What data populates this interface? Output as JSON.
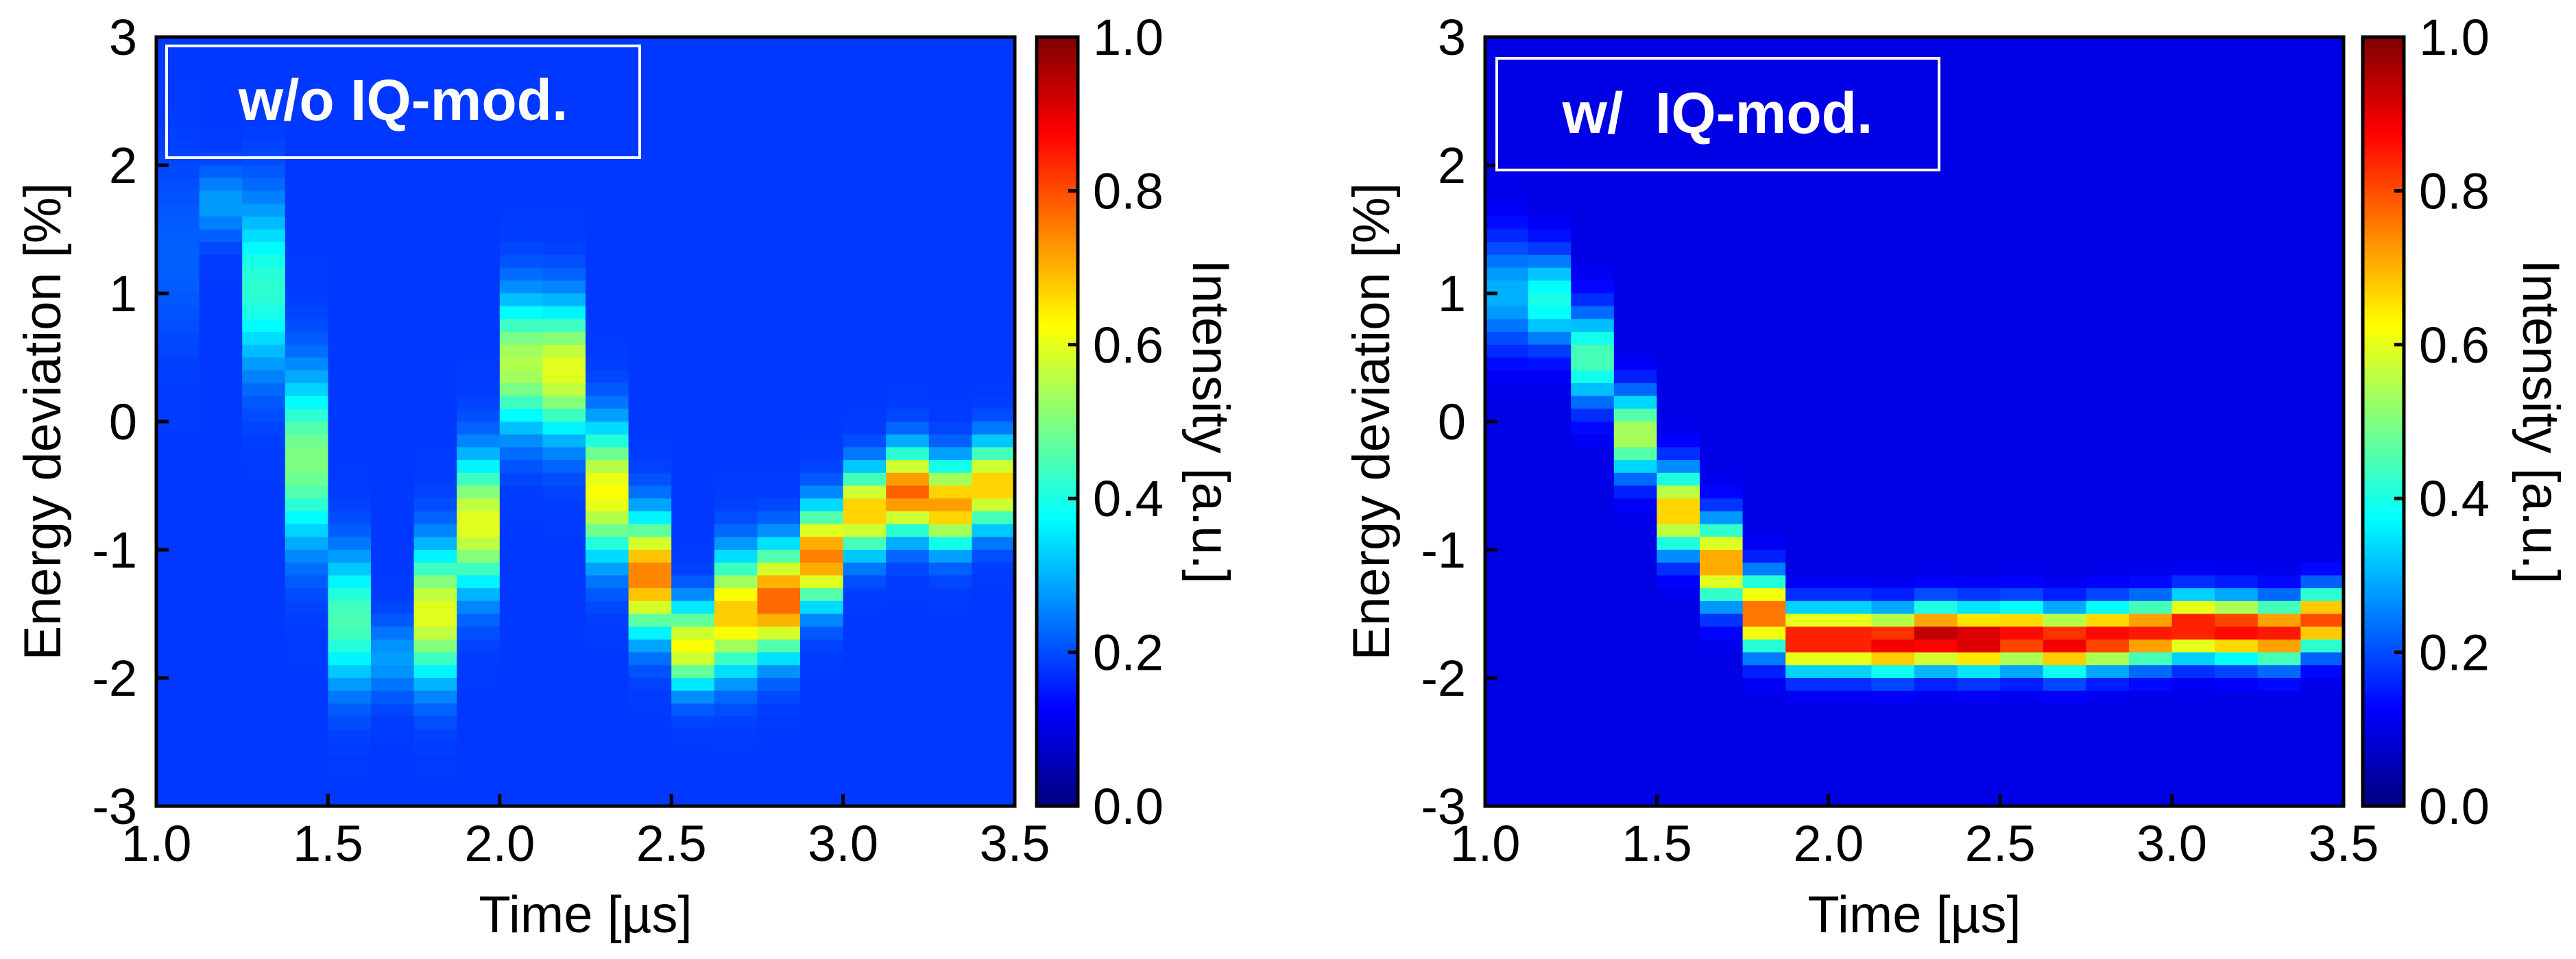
{
  "colors": {
    "jet_stops": [
      "#00007f",
      "#0000ff",
      "#007fff",
      "#00ffff",
      "#7fff7f",
      "#ffff00",
      "#ff7f00",
      "#ff0000",
      "#7f0000"
    ],
    "label_box_text": "#ffffff",
    "label_box_border": "#ffffff",
    "axis": "#000000"
  },
  "chart_data": [
    {
      "type": "heatmap",
      "label_box": "w/o IQ-mod.",
      "xlabel": "Time [µs]",
      "ylabel": "Energy deviation [%]",
      "xlim": [
        1.0,
        3.5
      ],
      "ylim": [
        -3,
        3
      ],
      "xticks": [
        "1.0",
        "1.5",
        "2.0",
        "2.5",
        "3.0",
        "3.5"
      ],
      "yticks": [
        "-3",
        "-2",
        "-1",
        "0",
        "1",
        "2",
        "3"
      ],
      "colorbar": {
        "label": "Intensity [a.u.]",
        "range": [
          0.0,
          1.0
        ],
        "ticks": [
          "0.0",
          "0.2",
          "0.4",
          "0.6",
          "0.8",
          "1.0"
        ]
      },
      "background_intensity": 0.18,
      "slices": [
        {
          "t": 1.06,
          "e": 1.3,
          "w": 0.5,
          "peak": 0.22
        },
        {
          "t": 1.19,
          "e": 1.7,
          "w": 0.18,
          "peak": 0.28
        },
        {
          "t": 1.33,
          "e": 1.05,
          "w": 0.45,
          "peak": 0.42
        },
        {
          "t": 1.46,
          "e": -0.3,
          "w": 0.45,
          "peak": 0.5
        },
        {
          "t": 1.58,
          "e": -1.55,
          "w": 0.35,
          "peak": 0.45
        },
        {
          "t": 1.72,
          "e": -1.85,
          "w": 0.2,
          "peak": 0.28
        },
        {
          "t": 1.84,
          "e": -1.5,
          "w": 0.35,
          "peak": 0.6
        },
        {
          "t": 1.97,
          "e": -0.8,
          "w": 0.35,
          "peak": 0.6
        },
        {
          "t": 2.1,
          "e": 0.45,
          "w": 0.35,
          "peak": 0.55
        },
        {
          "t": 2.22,
          "e": 0.4,
          "w": 0.35,
          "peak": 0.6
        },
        {
          "t": 2.34,
          "e": -0.55,
          "w": 0.35,
          "peak": 0.62
        },
        {
          "t": 2.46,
          "e": -1.2,
          "w": 0.3,
          "peak": 0.75
        },
        {
          "t": 2.59,
          "e": -1.75,
          "w": 0.22,
          "peak": 0.62
        },
        {
          "t": 2.71,
          "e": -1.5,
          "w": 0.3,
          "peak": 0.68
        },
        {
          "t": 2.84,
          "e": -1.4,
          "w": 0.28,
          "peak": 0.78
        },
        {
          "t": 2.96,
          "e": -1.05,
          "w": 0.25,
          "peak": 0.75
        },
        {
          "t": 3.09,
          "e": -0.7,
          "w": 0.22,
          "peak": 0.68
        },
        {
          "t": 3.21,
          "e": -0.55,
          "w": 0.22,
          "peak": 0.78
        },
        {
          "t": 3.34,
          "e": -0.65,
          "w": 0.22,
          "peak": 0.72
        },
        {
          "t": 3.46,
          "e": -0.5,
          "w": 0.22,
          "peak": 0.68
        }
      ]
    },
    {
      "type": "heatmap",
      "label_box": "w/  IQ-mod.",
      "xlabel": "Time [µs]",
      "ylabel": "Energy deviation [%]",
      "xlim": [
        1.0,
        3.5
      ],
      "ylim": [
        -3,
        3
      ],
      "xticks": [
        "1.0",
        "1.5",
        "2.0",
        "2.5",
        "3.0",
        "3.5"
      ],
      "yticks": [
        "-3",
        "-2",
        "-1",
        "0",
        "1",
        "2",
        "3"
      ],
      "colorbar": {
        "label": "Intensity [a.u.]",
        "range": [
          0.0,
          1.0
        ],
        "ticks": [
          "0.0",
          "0.2",
          "0.4",
          "0.6",
          "0.8",
          "1.0"
        ]
      },
      "background_intensity": 0.1,
      "slices": [
        {
          "t": 1.06,
          "e": 1.0,
          "w": 0.3,
          "peak": 0.3
        },
        {
          "t": 1.19,
          "e": 0.95,
          "w": 0.25,
          "peak": 0.4
        },
        {
          "t": 1.33,
          "e": 0.5,
          "w": 0.25,
          "peak": 0.45
        },
        {
          "t": 1.46,
          "e": -0.1,
          "w": 0.22,
          "peak": 0.55
        },
        {
          "t": 1.58,
          "e": -0.7,
          "w": 0.22,
          "peak": 0.68
        },
        {
          "t": 1.71,
          "e": -1.1,
          "w": 0.22,
          "peak": 0.72
        },
        {
          "t": 1.84,
          "e": -1.5,
          "w": 0.2,
          "peak": 0.78
        },
        {
          "t": 1.96,
          "e": -1.7,
          "w": 0.16,
          "peak": 0.88
        },
        {
          "t": 2.09,
          "e": -1.7,
          "w": 0.16,
          "peak": 0.88
        },
        {
          "t": 2.21,
          "e": -1.72,
          "w": 0.16,
          "peak": 0.9
        },
        {
          "t": 2.34,
          "e": -1.68,
          "w": 0.16,
          "peak": 0.95
        },
        {
          "t": 2.46,
          "e": -1.7,
          "w": 0.16,
          "peak": 0.95
        },
        {
          "t": 2.59,
          "e": -1.68,
          "w": 0.16,
          "peak": 0.88
        },
        {
          "t": 2.71,
          "e": -1.72,
          "w": 0.16,
          "peak": 0.9
        },
        {
          "t": 2.84,
          "e": -1.68,
          "w": 0.16,
          "peak": 0.88
        },
        {
          "t": 2.96,
          "e": -1.65,
          "w": 0.16,
          "peak": 0.85
        },
        {
          "t": 3.09,
          "e": -1.6,
          "w": 0.16,
          "peak": 0.88
        },
        {
          "t": 3.21,
          "e": -1.62,
          "w": 0.16,
          "peak": 0.88
        },
        {
          "t": 3.34,
          "e": -1.65,
          "w": 0.16,
          "peak": 0.85
        },
        {
          "t": 3.46,
          "e": -1.55,
          "w": 0.16,
          "peak": 0.8
        }
      ]
    }
  ]
}
